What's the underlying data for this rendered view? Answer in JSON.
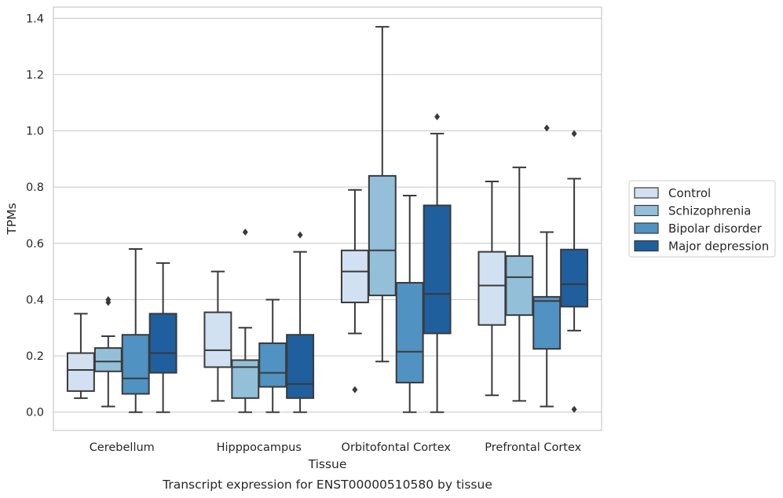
{
  "chart_data": {
    "type": "box",
    "title": "",
    "caption": "Transcript expression for ENST00000510580 by tissue",
    "xlabel": "Tissue",
    "ylabel": "TPMs",
    "ylim": [
      -0.065,
      1.44
    ],
    "yticks": [
      0.0,
      0.2,
      0.4,
      0.6,
      0.8,
      1.0,
      1.2,
      1.4
    ],
    "ytick_labels": [
      "0.0",
      "0.2",
      "0.4",
      "0.6",
      "0.8",
      "1.0",
      "1.2",
      "1.4"
    ],
    "grid": true,
    "legend_position": "right",
    "categories": [
      "Cerebellum",
      "Hipppocampus",
      "Orbitofontal Cortex",
      "Prefrontal Cortex"
    ],
    "series": [
      {
        "name": "Control",
        "color": "#d1e1f1",
        "boxes": [
          {
            "whislo": 0.05,
            "q1": 0.075,
            "med": 0.15,
            "q3": 0.21,
            "whishi": 0.35,
            "fliers": []
          },
          {
            "whislo": 0.04,
            "q1": 0.16,
            "med": 0.22,
            "q3": 0.355,
            "whishi": 0.5,
            "fliers": []
          },
          {
            "whislo": 0.28,
            "q1": 0.39,
            "med": 0.5,
            "q3": 0.575,
            "whishi": 0.79,
            "fliers": [
              0.08
            ]
          },
          {
            "whislo": 0.06,
            "q1": 0.31,
            "med": 0.45,
            "q3": 0.57,
            "whishi": 0.82,
            "fliers": []
          }
        ]
      },
      {
        "name": "Schizophrenia",
        "color": "#93bfd9",
        "boxes": [
          {
            "whislo": 0.02,
            "q1": 0.145,
            "med": 0.18,
            "q3": 0.228,
            "whishi": 0.27,
            "fliers": [
              0.39,
              0.4
            ]
          },
          {
            "whislo": 0.0,
            "q1": 0.05,
            "med": 0.16,
            "q3": 0.185,
            "whishi": 0.3,
            "fliers": [
              0.64
            ]
          },
          {
            "whislo": 0.18,
            "q1": 0.415,
            "med": 0.575,
            "q3": 0.84,
            "whishi": 1.37,
            "fliers": []
          },
          {
            "whislo": 0.04,
            "q1": 0.345,
            "med": 0.48,
            "q3": 0.555,
            "whishi": 0.87,
            "fliers": []
          }
        ]
      },
      {
        "name": "Bipolar disorder",
        "color": "#5092c1",
        "boxes": [
          {
            "whislo": 0.0,
            "q1": 0.065,
            "med": 0.12,
            "q3": 0.275,
            "whishi": 0.58,
            "fliers": []
          },
          {
            "whislo": 0.0,
            "q1": 0.09,
            "med": 0.14,
            "q3": 0.245,
            "whishi": 0.4,
            "fliers": []
          },
          {
            "whislo": 0.0,
            "q1": 0.105,
            "med": 0.215,
            "q3": 0.46,
            "whishi": 0.77,
            "fliers": []
          },
          {
            "whislo": 0.02,
            "q1": 0.225,
            "med": 0.395,
            "q3": 0.41,
            "whishi": 0.64,
            "fliers": [
              1.01
            ]
          }
        ]
      },
      {
        "name": "Major depression",
        "color": "#1f5f9e",
        "boxes": [
          {
            "whislo": 0.0,
            "q1": 0.14,
            "med": 0.21,
            "q3": 0.35,
            "whishi": 0.53,
            "fliers": []
          },
          {
            "whislo": 0.0,
            "q1": 0.05,
            "med": 0.1,
            "q3": 0.275,
            "whishi": 0.57,
            "fliers": [
              0.63
            ]
          },
          {
            "whislo": 0.0,
            "q1": 0.28,
            "med": 0.42,
            "q3": 0.735,
            "whishi": 0.99,
            "fliers": [
              1.05
            ]
          },
          {
            "whislo": 0.29,
            "q1": 0.375,
            "med": 0.455,
            "q3": 0.578,
            "whishi": 0.83,
            "fliers": [
              0.99,
              0.01
            ]
          }
        ]
      }
    ]
  }
}
